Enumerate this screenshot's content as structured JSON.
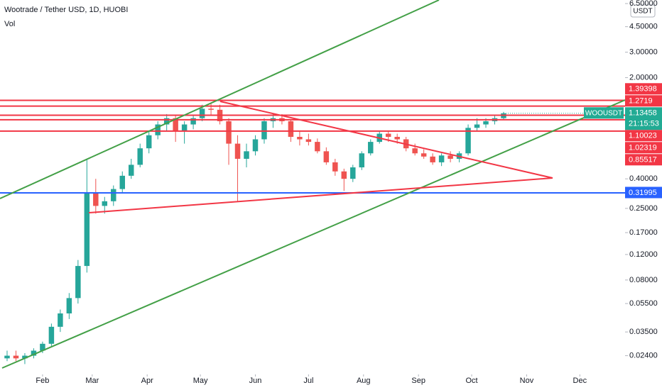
{
  "chart_data": {
    "type": "candlestick",
    "title": "Wootrade / Tether USD, 1D, HUOBI",
    "volume_label": "Vol",
    "currency": "USDT",
    "symbol": "WOOUSDT",
    "countdown": "21:15:53",
    "log_scale": true,
    "grid": false,
    "up_color": "#26a69a",
    "down_color": "#ef5350",
    "open": [
      0.023,
      0.024,
      0.023,
      0.024,
      0.026,
      0.029,
      0.038,
      0.047,
      0.06,
      0.1,
      0.32,
      0.26,
      0.28,
      0.34,
      0.42,
      0.5,
      0.65,
      0.8,
      0.95,
      1.05,
      0.85,
      0.95,
      1.05,
      1.22,
      1.2,
      1.0,
      0.7,
      0.55,
      0.62,
      0.75,
      1.0,
      1.05,
      1.0,
      0.78,
      0.75,
      0.72,
      0.62,
      0.52,
      0.45,
      0.4,
      0.48,
      0.6,
      0.72,
      0.82,
      0.78,
      0.75,
      0.65,
      0.6,
      0.57,
      0.52,
      0.58,
      0.55,
      0.6,
      0.9,
      0.95,
      1.0,
      1.05
    ],
    "high": [
      0.026,
      0.026,
      0.025,
      0.027,
      0.03,
      0.04,
      0.05,
      0.065,
      0.11,
      0.55,
      0.4,
      0.3,
      0.36,
      0.45,
      0.55,
      0.7,
      0.85,
      1.0,
      1.12,
      1.1,
      1.0,
      1.1,
      1.3,
      1.35,
      1.3,
      1.05,
      0.8,
      0.7,
      0.8,
      1.05,
      1.12,
      1.12,
      1.02,
      0.85,
      0.82,
      0.76,
      0.66,
      0.55,
      0.47,
      0.5,
      0.62,
      0.75,
      0.85,
      0.86,
      0.82,
      0.78,
      0.7,
      0.64,
      0.6,
      0.6,
      0.62,
      0.62,
      0.95,
      1.05,
      1.05,
      1.1,
      1.16
    ],
    "low": [
      0.022,
      0.022,
      0.021,
      0.023,
      0.025,
      0.028,
      0.035,
      0.043,
      0.055,
      0.09,
      0.23,
      0.23,
      0.26,
      0.32,
      0.4,
      0.48,
      0.6,
      0.75,
      0.85,
      0.72,
      0.7,
      0.88,
      1.0,
      1.1,
      0.95,
      0.5,
      0.28,
      0.48,
      0.58,
      0.7,
      0.9,
      0.95,
      0.72,
      0.68,
      0.68,
      0.6,
      0.5,
      0.42,
      0.33,
      0.38,
      0.46,
      0.58,
      0.7,
      0.72,
      0.7,
      0.62,
      0.58,
      0.55,
      0.5,
      0.49,
      0.52,
      0.52,
      0.58,
      0.85,
      0.9,
      0.95,
      1.02
    ],
    "close": [
      0.024,
      0.023,
      0.024,
      0.026,
      0.029,
      0.038,
      0.047,
      0.06,
      0.1,
      0.32,
      0.26,
      0.28,
      0.34,
      0.42,
      0.5,
      0.65,
      0.8,
      0.95,
      1.05,
      0.85,
      0.95,
      1.05,
      1.22,
      1.2,
      1.0,
      0.7,
      0.55,
      0.62,
      0.75,
      1.0,
      1.05,
      1.0,
      0.78,
      0.75,
      0.72,
      0.62,
      0.52,
      0.45,
      0.4,
      0.48,
      0.6,
      0.72,
      0.82,
      0.78,
      0.75,
      0.65,
      0.6,
      0.57,
      0.52,
      0.58,
      0.55,
      0.6,
      0.9,
      0.95,
      1.0,
      1.05,
      1.13458
    ],
    "xlim": [
      -0.8,
      69.7
    ],
    "xticks": [
      {
        "value": 4,
        "label": "Feb"
      },
      {
        "value": 9.6,
        "label": "Mar"
      },
      {
        "value": 15.8,
        "label": "Apr"
      },
      {
        "value": 21.8,
        "label": "May"
      },
      {
        "value": 28,
        "label": "Jun"
      },
      {
        "value": 34,
        "label": "Jul"
      },
      {
        "value": 40.2,
        "label": "Aug"
      },
      {
        "value": 46.4,
        "label": "Sep"
      },
      {
        "value": 52.4,
        "label": "Oct"
      },
      {
        "value": 58.6,
        "label": "Nov"
      },
      {
        "value": 64.6,
        "label": "Dec"
      }
    ],
    "ylim": [
      0.0195,
      6.88
    ],
    "yticks": [
      {
        "value": 6.5,
        "label": "6.50000"
      },
      {
        "value": 4.5,
        "label": "4.50000"
      },
      {
        "value": 3,
        "label": "3.00000"
      },
      {
        "value": 2,
        "label": "2.00000"
      },
      {
        "value": 0.4,
        "label": "0.40000"
      },
      {
        "value": 0.25,
        "label": "0.25000"
      },
      {
        "value": 0.17,
        "label": "0.17000"
      },
      {
        "value": 0.12,
        "label": "0.12000"
      },
      {
        "value": 0.08,
        "label": "0.08000"
      },
      {
        "value": 0.055,
        "label": "0.05500"
      },
      {
        "value": 0.035,
        "label": "0.03500"
      },
      {
        "value": 0.024,
        "label": "0.02400"
      }
    ],
    "levels": [
      {
        "value": 1.39398,
        "color": "#f23645"
      },
      {
        "value": 1.2719,
        "color": "#f23645"
      },
      {
        "value": 1.10023,
        "color": "#f23645"
      },
      {
        "value": 1.02319,
        "color": "#f23645"
      },
      {
        "value": 0.85517,
        "color": "#f23645"
      },
      {
        "value": 0.31995,
        "color": "#2962ff"
      }
    ],
    "last_color": "#22ab94"
  }
}
